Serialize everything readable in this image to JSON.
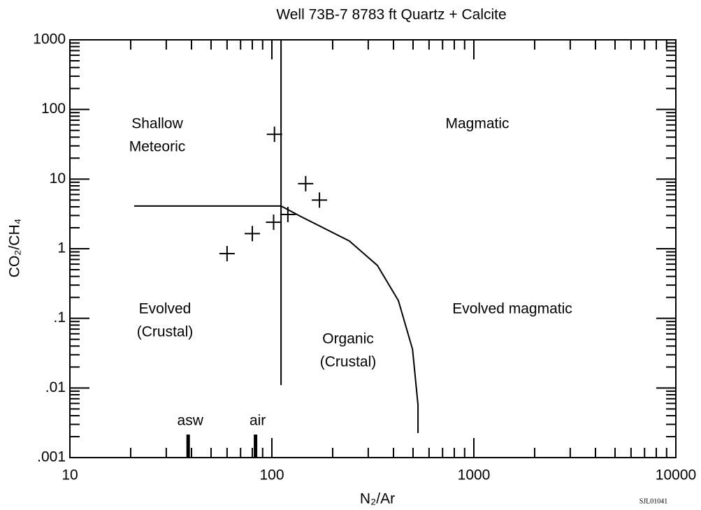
{
  "chart_data": {
    "type": "scatter",
    "title": "Well 73B-7 8783 ft  Quartz + Calcite",
    "x_label": "N₂/Ar",
    "y_label": "CO₂/CH₄",
    "xscale": "log",
    "yscale": "log",
    "xlim": [
      10,
      10000
    ],
    "ylim": [
      0.001,
      1000
    ],
    "xticks": [
      10,
      100,
      1000,
      10000
    ],
    "yticks": [
      {
        "value": 0.001,
        "label": ".001"
      },
      {
        "value": 0.01,
        "label": ".01"
      },
      {
        "value": 0.1,
        "label": ".1"
      },
      1,
      10,
      100,
      1000
    ],
    "color": "#000000",
    "series": [
      {
        "x": [
          60,
          80,
          102,
          103,
          120,
          147,
          172
        ],
        "values": [
          0.85,
          1.65,
          2.4,
          44,
          3.1,
          8.6,
          5.0
        ]
      }
    ],
    "lines": [
      {
        "x": [
          20.8,
          111
        ],
        "values": [
          4.1,
          4.1
        ]
      },
      {
        "x": [
          111,
          111
        ],
        "values": [
          1000,
          0.011
        ]
      },
      {
        "x": [
          111,
          139,
          242,
          333,
          423,
          497,
          529,
          529
        ],
        "values": [
          4.1,
          2.9,
          1.29,
          0.575,
          0.18,
          0.036,
          0.0057,
          0.00225
        ]
      }
    ],
    "annotations": [
      "Shallow",
      "Meteoric",
      "Magmatic",
      "Evolved",
      "(Crustal)",
      "Evolved magmatic",
      "Organic",
      "(Crustal)"
    ],
    "markers": [
      {
        "label": "asw",
        "x": 38.5
      },
      {
        "label": "air",
        "x": 83
      }
    ],
    "footnote": "SJL01041"
  }
}
